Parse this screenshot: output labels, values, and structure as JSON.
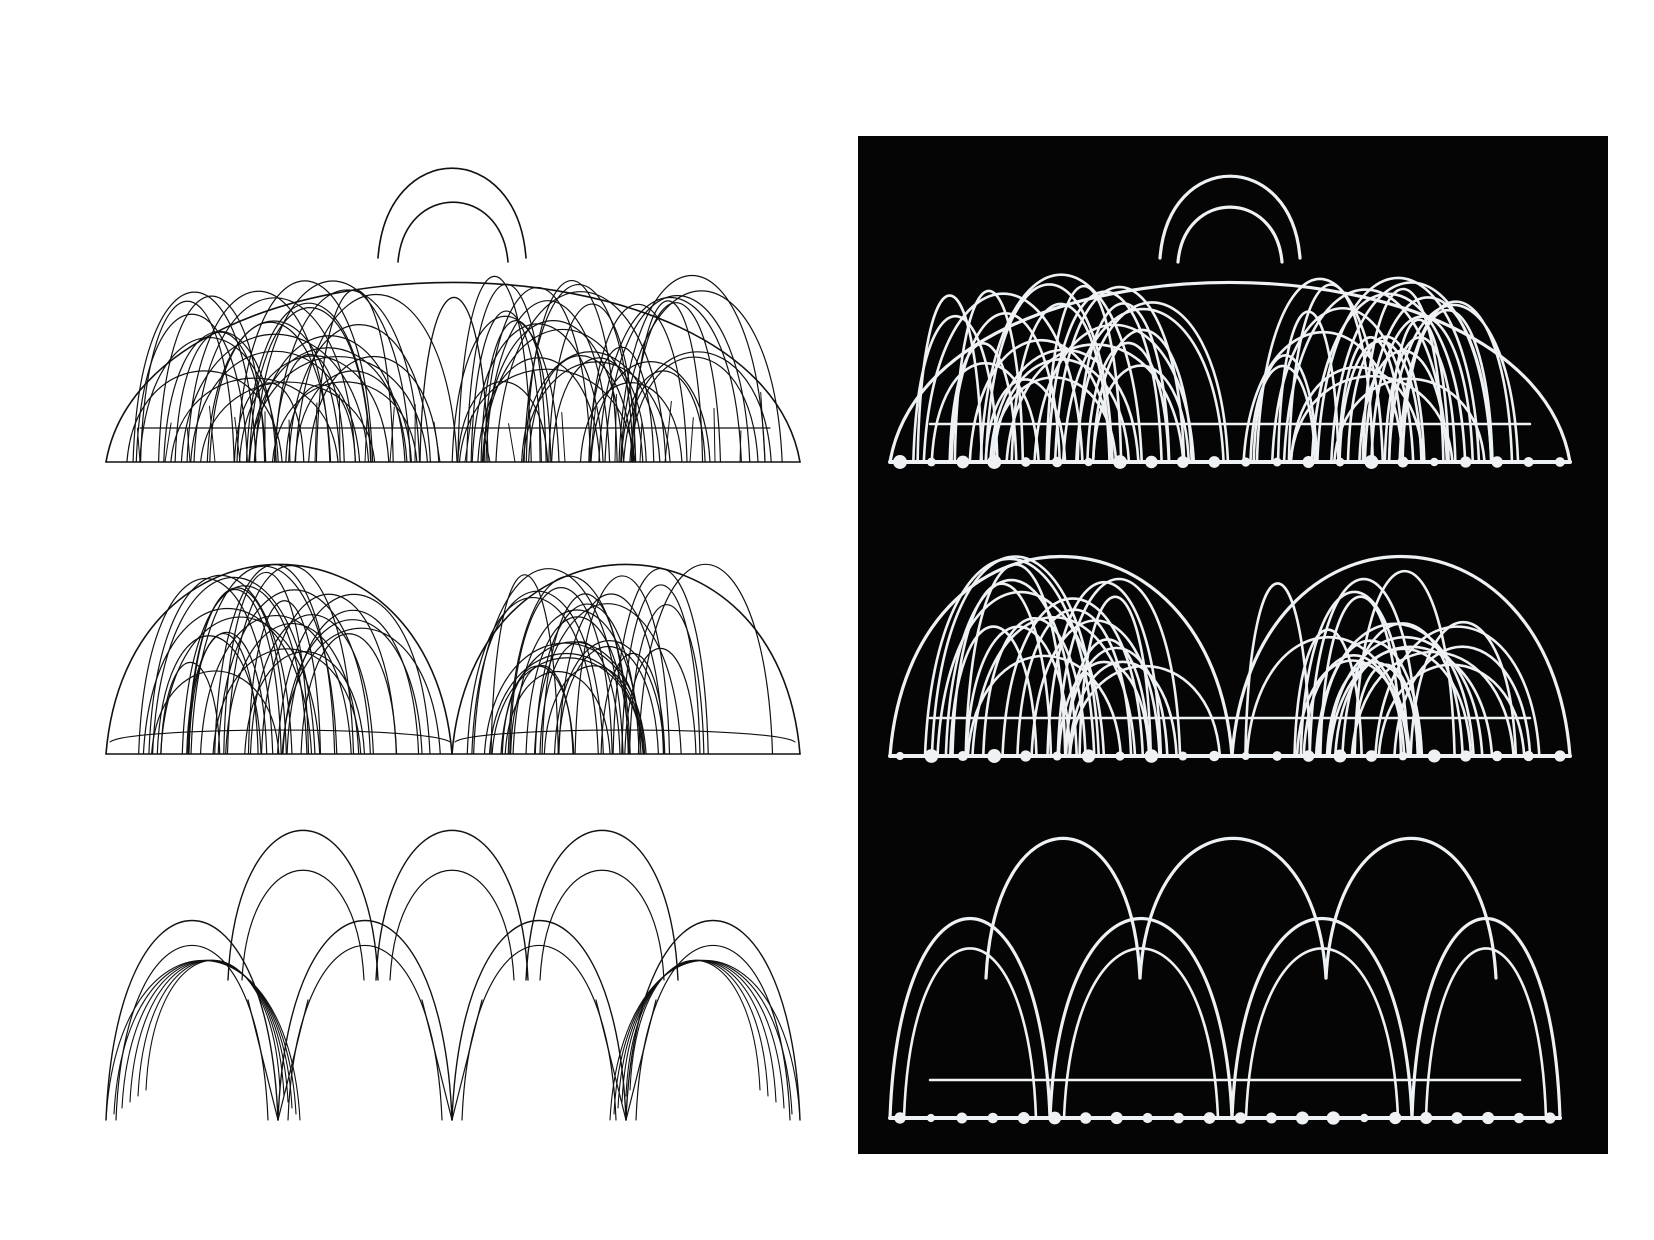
{
  "figure": {
    "background": "#ffffff",
    "drawing_stroke": "#111111",
    "photo_background": "#050505",
    "photo_stroke": "#eef2f4",
    "rows": [
      {
        "variant": "tall central arch flanked by dense arch clusters",
        "drawing_name": "drawing-row-1",
        "photo_name": "photo-row-1"
      },
      {
        "variant": "two separated arch clusters",
        "drawing_name": "drawing-row-2",
        "photo_name": "photo-row-2"
      },
      {
        "variant": "open arcade of large arches",
        "drawing_name": "drawing-row-3",
        "photo_name": "photo-row-3"
      }
    ]
  }
}
